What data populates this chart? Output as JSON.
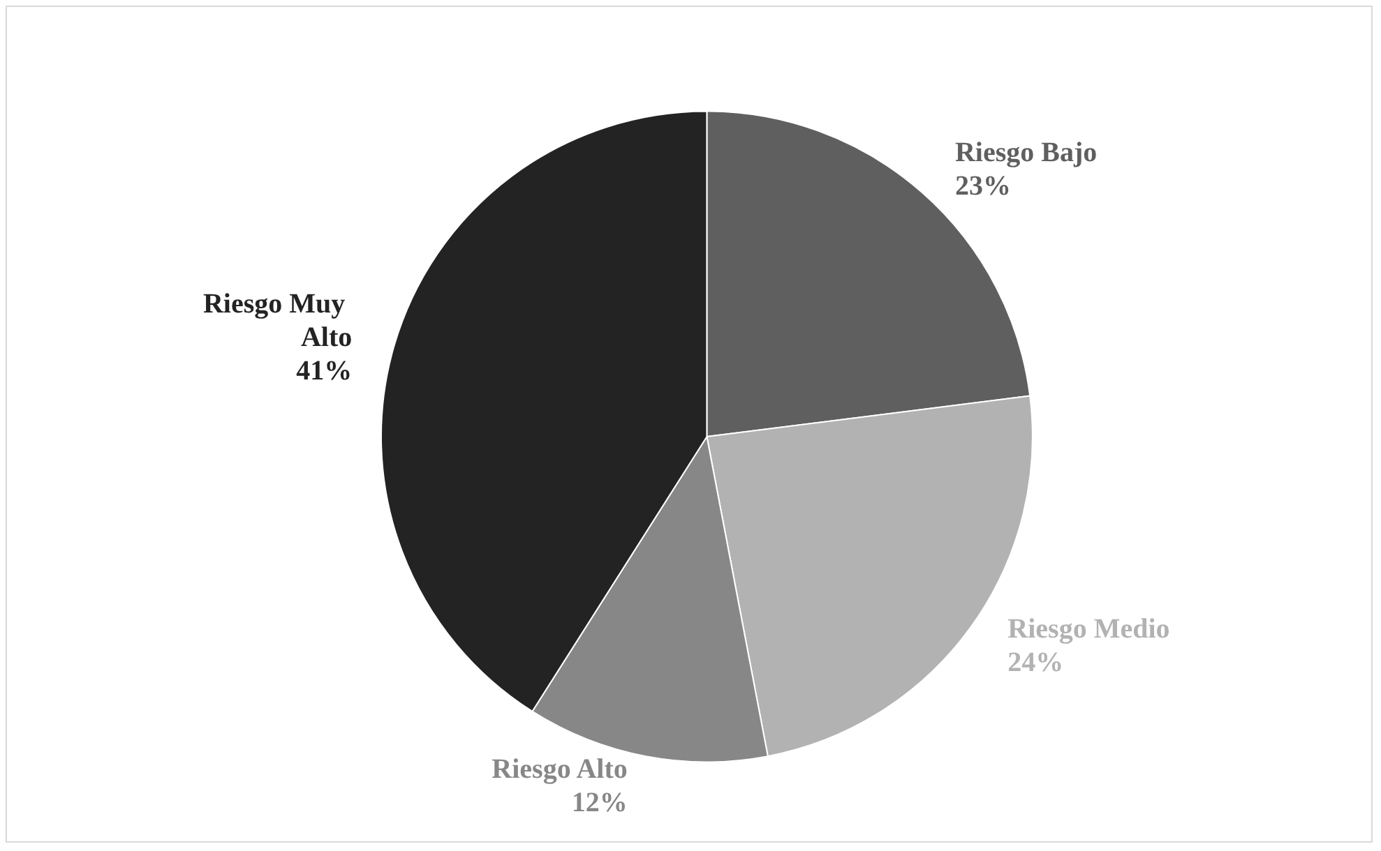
{
  "chart_data": {
    "type": "pie",
    "categories": [
      "Riesgo Bajo",
      "Riesgo Medio",
      "Riesgo Alto",
      "Riesgo Muy Alto"
    ],
    "values": [
      23,
      24,
      12,
      41
    ],
    "value_labels": [
      "23%",
      "24%",
      "12%",
      "41%"
    ],
    "colors": [
      "#5f5f5f",
      "#b2b2b2",
      "#878787",
      "#232323"
    ],
    "legend": false
  }
}
